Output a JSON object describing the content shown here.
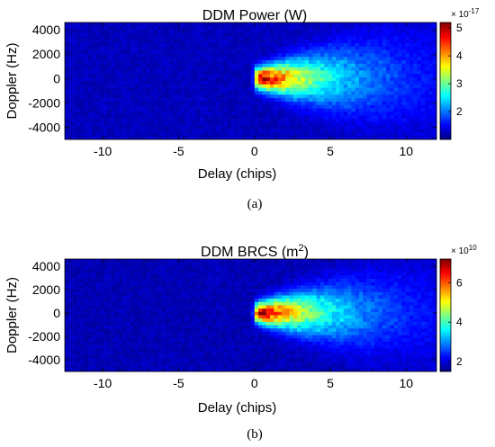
{
  "chart_data": [
    {
      "type": "heatmap",
      "title_main": "DDM Power (W)",
      "title_sup": "",
      "title_end": "",
      "xlabel": "Delay (chips)",
      "ylabel": "Doppler (Hz)",
      "xlim": [
        -12.5,
        12
      ],
      "ylim": [
        -5000,
        4600
      ],
      "xticks": [
        -10,
        -5,
        0,
        5,
        10
      ],
      "yticks": [
        4000,
        2000,
        0,
        -2000,
        -4000
      ],
      "xtick_labels": [
        "-10",
        "-5",
        "0",
        "5",
        "10"
      ],
      "ytick_labels": [
        "4000",
        "2000",
        "0",
        "-2000",
        "-4000"
      ],
      "colorbar_exponent_base": "× 10",
      "colorbar_exponent_power": "-17",
      "colorbar_range": [
        1,
        5.2
      ],
      "colorbar_ticks": [
        2,
        3,
        4,
        5
      ],
      "colorbar_tick_labels": [
        "2",
        "3",
        "4",
        "5"
      ],
      "colormap": "jet",
      "peak": {
        "delay": 0.3,
        "doppler": 0
      },
      "background_level": 1.25,
      "peak_level": 5.2,
      "caption": "(a)"
    },
    {
      "type": "heatmap",
      "title_main": "DDM BRCS (m",
      "title_sup": "2",
      "title_end": ")",
      "xlabel": "Delay (chips)",
      "ylabel": "Doppler (Hz)",
      "xlim": [
        -12.5,
        12
      ],
      "ylim": [
        -5000,
        4600
      ],
      "xticks": [
        -10,
        -5,
        0,
        5,
        10
      ],
      "yticks": [
        4000,
        2000,
        0,
        -2000,
        -4000
      ],
      "xtick_labels": [
        "-10",
        "-5",
        "0",
        "5",
        "10"
      ],
      "ytick_labels": [
        "4000",
        "2000",
        "0",
        "-2000",
        "-4000"
      ],
      "colorbar_exponent_base": "× 10",
      "colorbar_exponent_power": "10",
      "colorbar_range": [
        1.5,
        7.2
      ],
      "colorbar_ticks": [
        2,
        4,
        6
      ],
      "colorbar_tick_labels": [
        "2",
        "4",
        "6"
      ],
      "colormap": "jet",
      "peak": {
        "delay": 0.3,
        "doppler": 0
      },
      "background_level": 1.8,
      "peak_level": 7.2,
      "caption": "(b)"
    }
  ]
}
